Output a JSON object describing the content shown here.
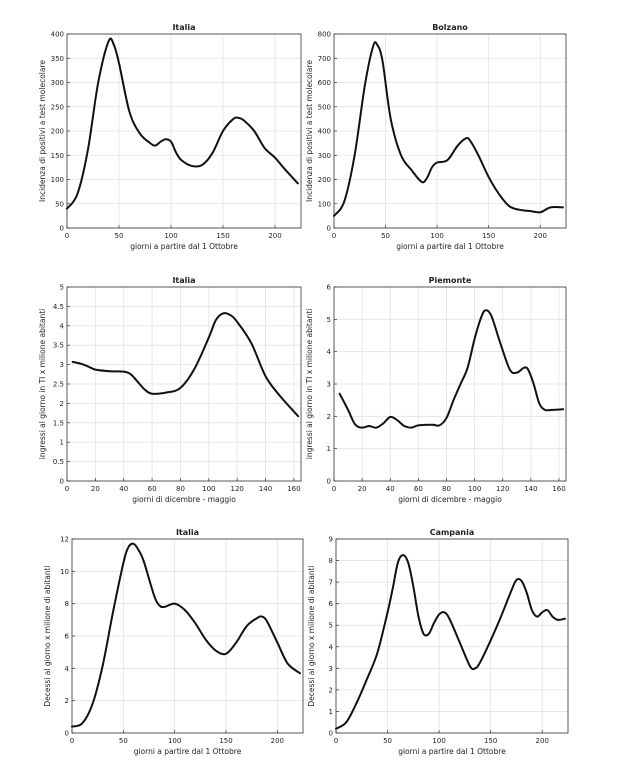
{
  "chart_data": [
    {
      "id": "p1",
      "type": "line",
      "title": "Italia",
      "xlabel": "giorni a partire dal 1 Ottobre",
      "ylabel": "Incidenza di positivi a test molecolare",
      "xlim": [
        0,
        225
      ],
      "ylim": [
        0,
        400
      ],
      "xticks": [
        0,
        50,
        100,
        150,
        200
      ],
      "yticks": [
        0,
        50,
        100,
        150,
        200,
        250,
        300,
        350,
        400
      ],
      "grid": true,
      "series": [
        {
          "x": [
            0,
            10,
            20,
            30,
            40,
            45,
            50,
            60,
            70,
            80,
            85,
            90,
            95,
            100,
            105,
            110,
            120,
            130,
            140,
            150,
            160,
            165,
            170,
            180,
            190,
            200,
            210,
            222
          ],
          "y": [
            40,
            70,
            160,
            300,
            385,
            378,
            340,
            240,
            195,
            175,
            170,
            178,
            183,
            178,
            155,
            140,
            128,
            130,
            155,
            200,
            225,
            227,
            222,
            200,
            165,
            145,
            120,
            92
          ]
        }
      ]
    },
    {
      "id": "p2",
      "type": "line",
      "title": "Bolzano",
      "xlabel": "giorni a partire dal 1 Ottobre",
      "ylabel": "Incidenza di positivi a test molecolare",
      "xlim": [
        0,
        225
      ],
      "ylim": [
        0,
        800
      ],
      "xticks": [
        0,
        50,
        100,
        150,
        200
      ],
      "yticks": [
        0,
        100,
        200,
        300,
        400,
        500,
        600,
        700,
        800
      ],
      "grid": true,
      "series": [
        {
          "x": [
            0,
            10,
            20,
            30,
            38,
            42,
            47,
            55,
            65,
            75,
            85,
            90,
            95,
            100,
            110,
            120,
            128,
            132,
            140,
            150,
            160,
            170,
            180,
            190,
            200,
            210,
            222
          ],
          "y": [
            50,
            110,
            300,
            590,
            750,
            755,
            690,
            450,
            300,
            240,
            190,
            205,
            250,
            270,
            280,
            340,
            370,
            360,
            300,
            210,
            140,
            90,
            75,
            70,
            65,
            85,
            85
          ]
        }
      ]
    },
    {
      "id": "p3",
      "type": "line",
      "title": "Italia",
      "xlabel": "giorni di dicembre - maggio",
      "ylabel": "ingressi al giorno in TI x milione abitanti",
      "xlim": [
        0,
        165
      ],
      "ylim": [
        0,
        5
      ],
      "xticks": [
        0,
        20,
        40,
        60,
        80,
        100,
        120,
        140,
        160
      ],
      "yticks": [
        0,
        0.5,
        1,
        1.5,
        2,
        2.5,
        3,
        3.5,
        4,
        4.5,
        5
      ],
      "grid": true,
      "series": [
        {
          "x": [
            4,
            10,
            15,
            20,
            30,
            40,
            45,
            50,
            55,
            60,
            70,
            80,
            90,
            100,
            105,
            110,
            115,
            120,
            130,
            140,
            150,
            163
          ],
          "y": [
            3.07,
            3.02,
            2.95,
            2.87,
            2.83,
            2.82,
            2.75,
            2.55,
            2.35,
            2.25,
            2.28,
            2.4,
            2.9,
            3.7,
            4.15,
            4.32,
            4.28,
            4.1,
            3.55,
            2.7,
            2.2,
            1.67
          ]
        }
      ]
    },
    {
      "id": "p4",
      "type": "line",
      "title": "Piemonte",
      "xlabel": "giorni di dicembre - maggio",
      "ylabel": "ingressi al giorno in TI x milione abitanti",
      "xlim": [
        0,
        165
      ],
      "ylim": [
        0,
        6
      ],
      "xticks": [
        0,
        20,
        40,
        60,
        80,
        100,
        120,
        140,
        160
      ],
      "yticks": [
        0,
        1,
        2,
        3,
        4,
        5,
        6
      ],
      "grid": true,
      "series": [
        {
          "x": [
            4,
            10,
            15,
            20,
            25,
            30,
            35,
            40,
            45,
            50,
            55,
            60,
            70,
            75,
            80,
            85,
            90,
            95,
            100,
            105,
            108,
            112,
            118,
            125,
            130,
            135,
            138,
            142,
            146,
            150,
            155,
            163
          ],
          "y": [
            2.7,
            2.2,
            1.75,
            1.65,
            1.7,
            1.65,
            1.78,
            1.98,
            1.88,
            1.7,
            1.65,
            1.72,
            1.74,
            1.72,
            1.95,
            2.5,
            3.0,
            3.5,
            4.4,
            5.1,
            5.28,
            5.1,
            4.3,
            3.45,
            3.35,
            3.5,
            3.45,
            3.0,
            2.4,
            2.2,
            2.2,
            2.22
          ]
        }
      ]
    },
    {
      "id": "p5",
      "type": "line",
      "title": "Italia",
      "xlabel": "giorni a partire dal 1 Ottobre",
      "ylabel": "Decessi al giorno x milione di abitanti",
      "xlim": [
        0,
        225
      ],
      "ylim": [
        0,
        12
      ],
      "xticks": [
        0,
        50,
        100,
        150,
        200
      ],
      "yticks": [
        0,
        2,
        4,
        6,
        8,
        10,
        12
      ],
      "grid": true,
      "series": [
        {
          "x": [
            0,
            10,
            20,
            30,
            40,
            50,
            55,
            60,
            65,
            70,
            80,
            85,
            90,
            100,
            110,
            120,
            130,
            140,
            150,
            160,
            170,
            180,
            185,
            190,
            200,
            210,
            222
          ],
          "y": [
            0.4,
            0.6,
            1.8,
            4.2,
            7.5,
            10.5,
            11.5,
            11.7,
            11.3,
            10.6,
            8.5,
            7.9,
            7.8,
            8.0,
            7.6,
            6.8,
            5.8,
            5.1,
            4.9,
            5.6,
            6.6,
            7.1,
            7.2,
            6.9,
            5.6,
            4.3,
            3.7
          ]
        }
      ]
    },
    {
      "id": "p6",
      "type": "line",
      "title": "Campania",
      "xlabel": "giorni a partire dal 1 Ottobre",
      "ylabel": "Decessi al giorno x milione di abitanti",
      "xlim": [
        0,
        225
      ],
      "ylim": [
        0,
        9
      ],
      "xticks": [
        0,
        50,
        100,
        150,
        200
      ],
      "yticks": [
        0,
        1,
        2,
        3,
        4,
        5,
        6,
        7,
        8,
        9
      ],
      "grid": true,
      "series": [
        {
          "x": [
            0,
            10,
            20,
            30,
            40,
            50,
            55,
            60,
            65,
            70,
            75,
            80,
            85,
            90,
            95,
            100,
            105,
            110,
            120,
            130,
            135,
            140,
            150,
            160,
            170,
            175,
            180,
            185,
            190,
            195,
            200,
            205,
            210,
            215,
            222
          ],
          "y": [
            0.2,
            0.5,
            1.4,
            2.5,
            3.7,
            5.6,
            6.7,
            7.9,
            8.25,
            7.9,
            6.8,
            5.4,
            4.6,
            4.6,
            5.1,
            5.5,
            5.6,
            5.3,
            4.2,
            3.1,
            3.0,
            3.3,
            4.3,
            5.4,
            6.6,
            7.1,
            7.05,
            6.5,
            5.7,
            5.4,
            5.6,
            5.7,
            5.4,
            5.25,
            5.3
          ]
        }
      ]
    }
  ]
}
